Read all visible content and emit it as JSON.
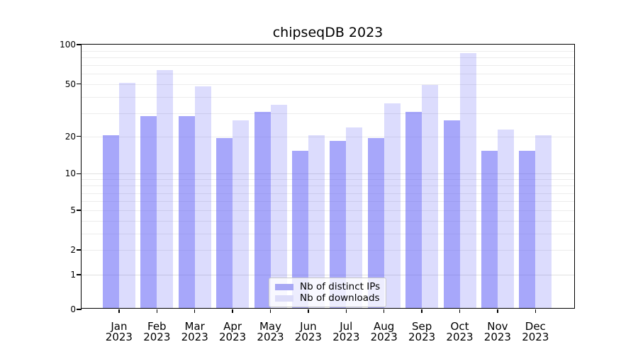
{
  "title": "chipseqDB 2023",
  "chart_data": {
    "type": "bar",
    "title": "chipseqDB 2023",
    "categories": [
      "Jan 2023",
      "Feb 2023",
      "Mar 2023",
      "Apr 2023",
      "May 2023",
      "Jun 2023",
      "Jul 2023",
      "Aug 2023",
      "Sep 2023",
      "Oct 2023",
      "Nov 2023",
      "Dec 2023"
    ],
    "x_tick_months": [
      "Jan",
      "Feb",
      "Mar",
      "Apr",
      "May",
      "Jun",
      "Jul",
      "Aug",
      "Sep",
      "Oct",
      "Nov",
      "Dec"
    ],
    "x_tick_year": "2023",
    "series": [
      {
        "name": "Nb of distinct IPs",
        "color": "rgba(80,80,245,0.5)",
        "swatch_color": "#a7a7f5",
        "values": [
          20,
          28,
          28,
          19,
          30,
          15,
          18,
          19,
          30,
          26,
          15,
          15
        ]
      },
      {
        "name": "Nb of downloads",
        "color": "rgba(80,80,245,0.2)",
        "swatch_color": "#dcdcf9",
        "values": [
          50,
          62,
          47,
          26,
          34,
          20,
          23,
          35,
          48,
          84,
          22,
          20
        ]
      }
    ],
    "yscale": "log1p",
    "ylim": [
      0,
      100
    ],
    "y_ticks": [
      0,
      1,
      2,
      5,
      10,
      20,
      50,
      100
    ],
    "grid_values": [
      1,
      2,
      3,
      4,
      5,
      6,
      7,
      8,
      9,
      10,
      20,
      30,
      40,
      50,
      60,
      70,
      80,
      90
    ],
    "grid": "horizontal",
    "legend_position": "lower-center"
  },
  "colors": {
    "distinct_ips": "#a7a7f5",
    "downloads": "#dcdcf9",
    "grid_minor": "#ececec",
    "grid_major": "#e0e0e0",
    "spine": "#000000",
    "background": "#ffffff"
  }
}
